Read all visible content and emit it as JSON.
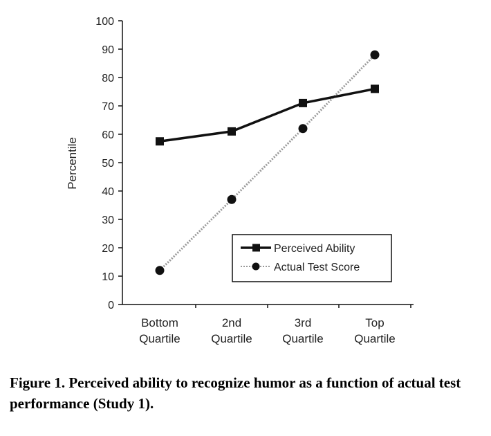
{
  "chart_data": {
    "type": "line",
    "categories": [
      "Bottom Quartile",
      "2nd Quartile",
      "3rd Quartile",
      "Top Quartile"
    ],
    "category_lines": [
      [
        "Bottom",
        "Quartile"
      ],
      [
        "2nd",
        "Quartile"
      ],
      [
        "3rd",
        "Quartile"
      ],
      [
        "Top",
        "Quartile"
      ]
    ],
    "series": [
      {
        "name": "Perceived Ability",
        "values": [
          57.5,
          61,
          71,
          76
        ],
        "marker": "square",
        "line": "solid",
        "color": "#111111"
      },
      {
        "name": "Actual Test Score",
        "values": [
          12,
          37,
          62,
          88
        ],
        "marker": "circle",
        "line": "dotted",
        "color": "#9a9a9a"
      }
    ],
    "ylabel": "Percentile",
    "ylim": [
      0,
      100
    ],
    "yticks": [
      "0",
      "10",
      "20",
      "30",
      "40",
      "50",
      "60",
      "70",
      "80",
      "90",
      "100"
    ],
    "grid": false,
    "legend_position": "bottom-right"
  },
  "caption": "Figure 1. Perceived ability to recognize humor as a function of actual test performance (Study 1)."
}
